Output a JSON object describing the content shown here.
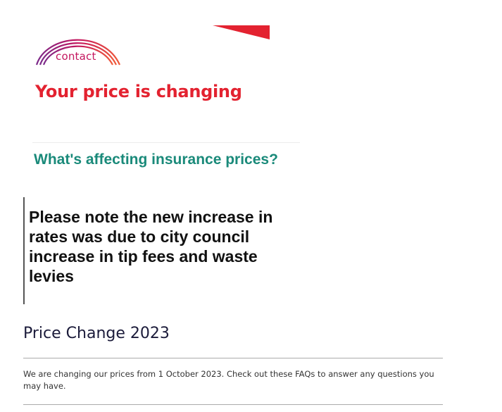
{
  "brand": {
    "logo_text": "contact",
    "colors": {
      "brand_red": "#e32230",
      "arc_purple": "#7b2a8a",
      "arc_magenta": "#c4165e",
      "arc_orange": "#f05a3a",
      "teal": "#1a8a7a"
    }
  },
  "hero": {
    "title": "Your price is changing"
  },
  "subheading": "What's affecting insurance prices?",
  "note": {
    "text": "Please note the new increase in rates was due to city council increase in tip fees and waste levies"
  },
  "section": {
    "title": "Price Change 2023",
    "body": "We are changing our prices from 1 October 2023. Check out these FAQs to answer any questions you may have."
  }
}
